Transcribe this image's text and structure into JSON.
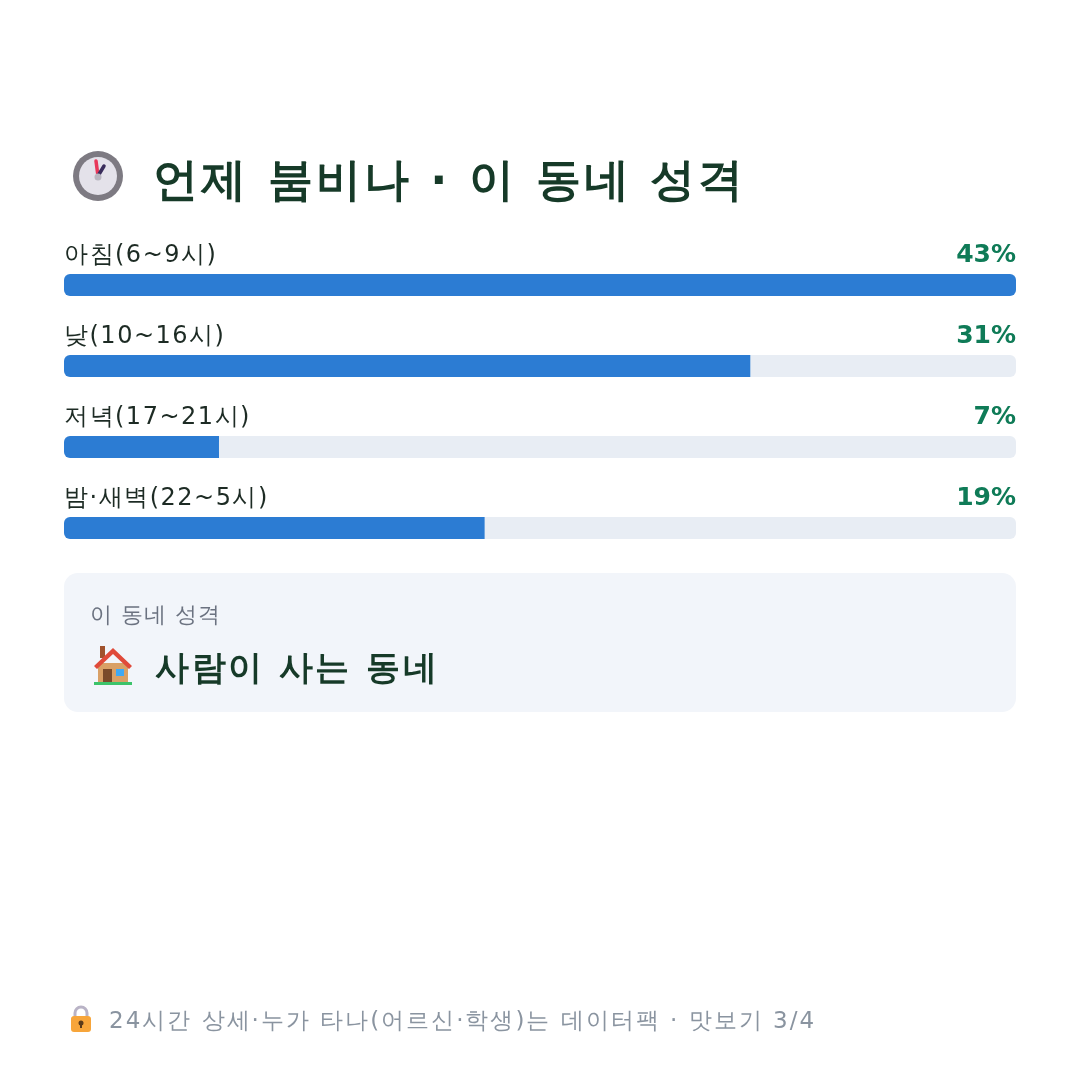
{
  "chart_data": {
    "type": "bar",
    "orientation": "horizontal",
    "title": "언제 붐비나 · 이 동네 성격",
    "categories": [
      "아침(6~9시)",
      "낮(10~16시)",
      "저녁(17~21시)",
      "밤·새벽(22~5시)"
    ],
    "values": [
      43,
      31,
      7,
      19
    ],
    "value_labels": [
      "43%",
      "31%",
      "7%",
      "19%"
    ],
    "color": "#2c7cd3",
    "annotations": [
      "이 동네 성격",
      "사람이 사는 동네",
      "24시간 상세·누가 타나(어르신·학생)는 데이터팩 · 맛보기 3/4"
    ]
  }
}
